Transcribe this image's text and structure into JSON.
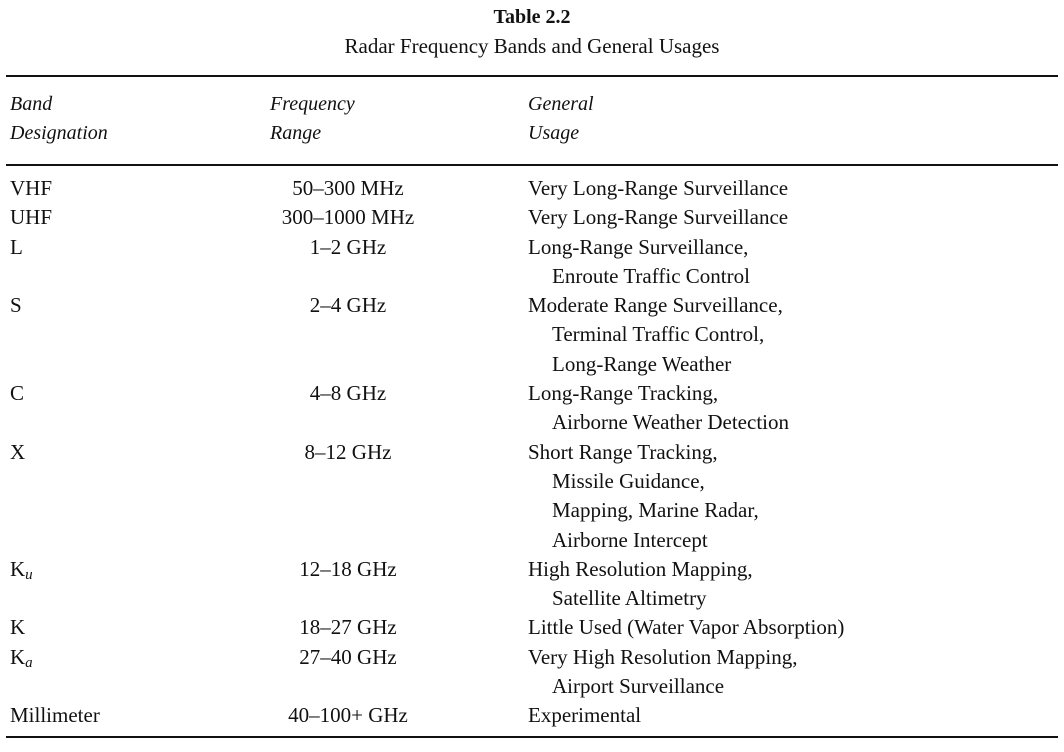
{
  "caption": {
    "number": "Table 2.2",
    "title": "Radar Frequency Bands and General Usages"
  },
  "headers": {
    "band": [
      "Band",
      "Designation"
    ],
    "freq": [
      "Frequency",
      "Range"
    ],
    "usage": [
      "General",
      "Usage"
    ]
  },
  "rows": [
    {
      "band": "VHF",
      "freq": "50–300 MHz",
      "usage": [
        "Very Long-Range Surveillance"
      ]
    },
    {
      "band": "UHF",
      "freq": "300–1000 MHz",
      "usage": [
        "Very Long-Range Surveillance"
      ]
    },
    {
      "band": "L",
      "freq": "1–2 GHz",
      "usage": [
        "Long-Range Surveillance,",
        "Enroute Traffic Control"
      ]
    },
    {
      "band": "S",
      "freq": "2–4 GHz",
      "usage": [
        "Moderate Range Surveillance,",
        "Terminal Traffic Control,",
        "Long-Range Weather"
      ]
    },
    {
      "band": "C",
      "freq": "4–8 GHz",
      "usage": [
        "Long-Range Tracking,",
        "Airborne Weather Detection"
      ]
    },
    {
      "band": "X",
      "freq": "8–12 GHz",
      "usage": [
        "Short Range Tracking,",
        "Missile Guidance,",
        "Mapping, Marine Radar,",
        "Airborne Intercept"
      ]
    },
    {
      "band": "K",
      "band_sub": "u",
      "freq": "12–18 GHz",
      "usage": [
        "High Resolution Mapping,",
        "Satellite Altimetry"
      ]
    },
    {
      "band": "K",
      "freq": "18–27 GHz",
      "usage": [
        "Little Used (Water Vapor Absorption)"
      ]
    },
    {
      "band": "K",
      "band_sub": "a",
      "freq": "27–40 GHz",
      "usage": [
        "Very High Resolution Mapping,",
        "Airport Surveillance"
      ]
    },
    {
      "band": "Millimeter",
      "freq": "40–100+ GHz",
      "usage": [
        "Experimental"
      ]
    }
  ]
}
